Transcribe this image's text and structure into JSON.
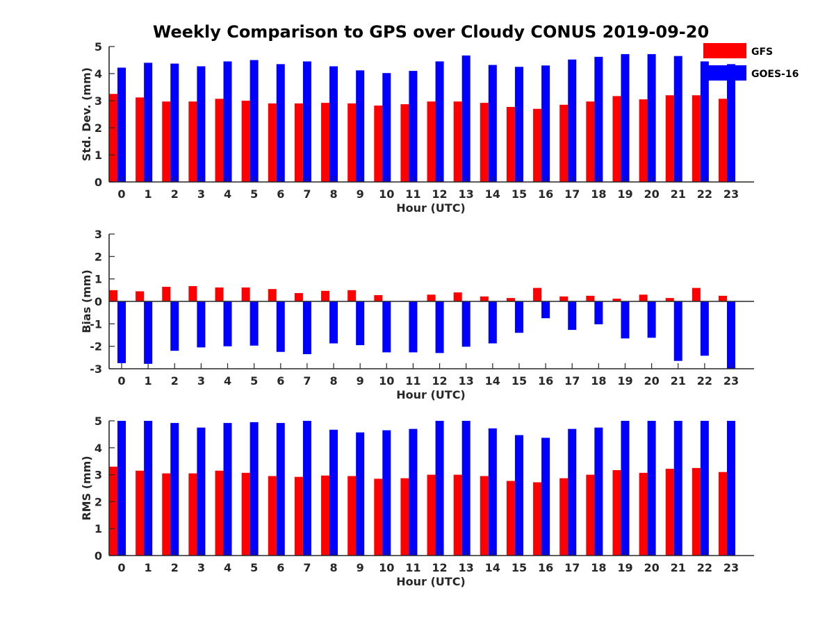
{
  "title": "Weekly Comparison to GPS over Cloudy CONUS 2019-09-20",
  "colors": {
    "gfs": "#ff0000",
    "goes": "#0000ff",
    "axis": "#262626"
  },
  "legend": [
    {
      "name": "GFS",
      "color": "#ff0000"
    },
    {
      "name": "GOES-16",
      "color": "#0000ff"
    }
  ],
  "chart_data": [
    {
      "type": "bar",
      "ylabel": "Std. Dev. (mm)",
      "xlabel": "Hour (UTC)",
      "ylim": [
        0,
        5
      ],
      "yticks": [
        0,
        1,
        2,
        3,
        4,
        5
      ],
      "categories": [
        "0",
        "1",
        "2",
        "3",
        "4",
        "5",
        "6",
        "7",
        "8",
        "9",
        "10",
        "11",
        "12",
        "13",
        "14",
        "15",
        "16",
        "17",
        "18",
        "19",
        "20",
        "21",
        "22",
        "23"
      ],
      "series": [
        {
          "name": "GFS",
          "values": [
            3.25,
            3.12,
            2.97,
            2.97,
            3.07,
            3.0,
            2.9,
            2.9,
            2.92,
            2.9,
            2.82,
            2.87,
            2.97,
            2.97,
            2.92,
            2.77,
            2.7,
            2.85,
            2.97,
            3.17,
            3.05,
            3.2,
            3.2,
            3.07
          ]
        },
        {
          "name": "GOES-16",
          "values": [
            4.22,
            4.4,
            4.37,
            4.27,
            4.45,
            4.5,
            4.35,
            4.45,
            4.27,
            4.12,
            4.02,
            4.1,
            4.45,
            4.67,
            4.32,
            4.25,
            4.3,
            4.52,
            4.62,
            4.72,
            4.72,
            4.65,
            4.45,
            4.35
          ]
        }
      ]
    },
    {
      "type": "bar",
      "ylabel": "Bias (mm)",
      "xlabel": "Hour (UTC)",
      "ylim": [
        -3,
        3
      ],
      "yticks": [
        -3,
        -2,
        -1,
        0,
        1,
        2,
        3
      ],
      "categories": [
        "0",
        "1",
        "2",
        "3",
        "4",
        "5",
        "6",
        "7",
        "8",
        "9",
        "10",
        "11",
        "12",
        "13",
        "14",
        "15",
        "16",
        "17",
        "18",
        "19",
        "20",
        "21",
        "22",
        "23"
      ],
      "series": [
        {
          "name": "GFS",
          "values": [
            0.5,
            0.45,
            0.65,
            0.68,
            0.62,
            0.62,
            0.55,
            0.37,
            0.47,
            0.5,
            0.28,
            0.02,
            0.3,
            0.4,
            0.22,
            0.15,
            0.6,
            0.22,
            0.25,
            0.12,
            0.3,
            0.15,
            0.6,
            0.25
          ]
        },
        {
          "name": "GOES-16",
          "values": [
            -2.75,
            -2.78,
            -2.2,
            -2.05,
            -2.0,
            -1.97,
            -2.25,
            -2.35,
            -1.87,
            -1.95,
            -2.27,
            -2.27,
            -2.3,
            -2.02,
            -1.87,
            -1.4,
            -0.75,
            -1.27,
            -1.02,
            -1.65,
            -1.62,
            -2.65,
            -2.42,
            -3.0
          ]
        }
      ]
    },
    {
      "type": "bar",
      "ylabel": "RMS (mm)",
      "xlabel": "Hour (UTC)",
      "ylim": [
        0,
        5
      ],
      "yticks": [
        0,
        1,
        2,
        3,
        4,
        5
      ],
      "categories": [
        "0",
        "1",
        "2",
        "3",
        "4",
        "5",
        "6",
        "7",
        "8",
        "9",
        "10",
        "11",
        "12",
        "13",
        "14",
        "15",
        "16",
        "17",
        "18",
        "19",
        "20",
        "21",
        "22",
        "23"
      ],
      "series": [
        {
          "name": "GFS",
          "values": [
            3.3,
            3.15,
            3.05,
            3.05,
            3.15,
            3.07,
            2.95,
            2.92,
            2.97,
            2.95,
            2.85,
            2.87,
            3.0,
            3.0,
            2.95,
            2.77,
            2.72,
            2.87,
            3.0,
            3.17,
            3.07,
            3.22,
            3.25,
            3.1
          ]
        },
        {
          "name": "GOES-16",
          "values": [
            5.0,
            5.0,
            4.92,
            4.75,
            4.92,
            4.95,
            4.92,
            5.0,
            4.67,
            4.57,
            4.65,
            4.7,
            5.0,
            5.0,
            4.72,
            4.47,
            4.37,
            4.7,
            4.75,
            5.0,
            5.0,
            5.0,
            5.0,
            5.0
          ]
        }
      ]
    }
  ]
}
